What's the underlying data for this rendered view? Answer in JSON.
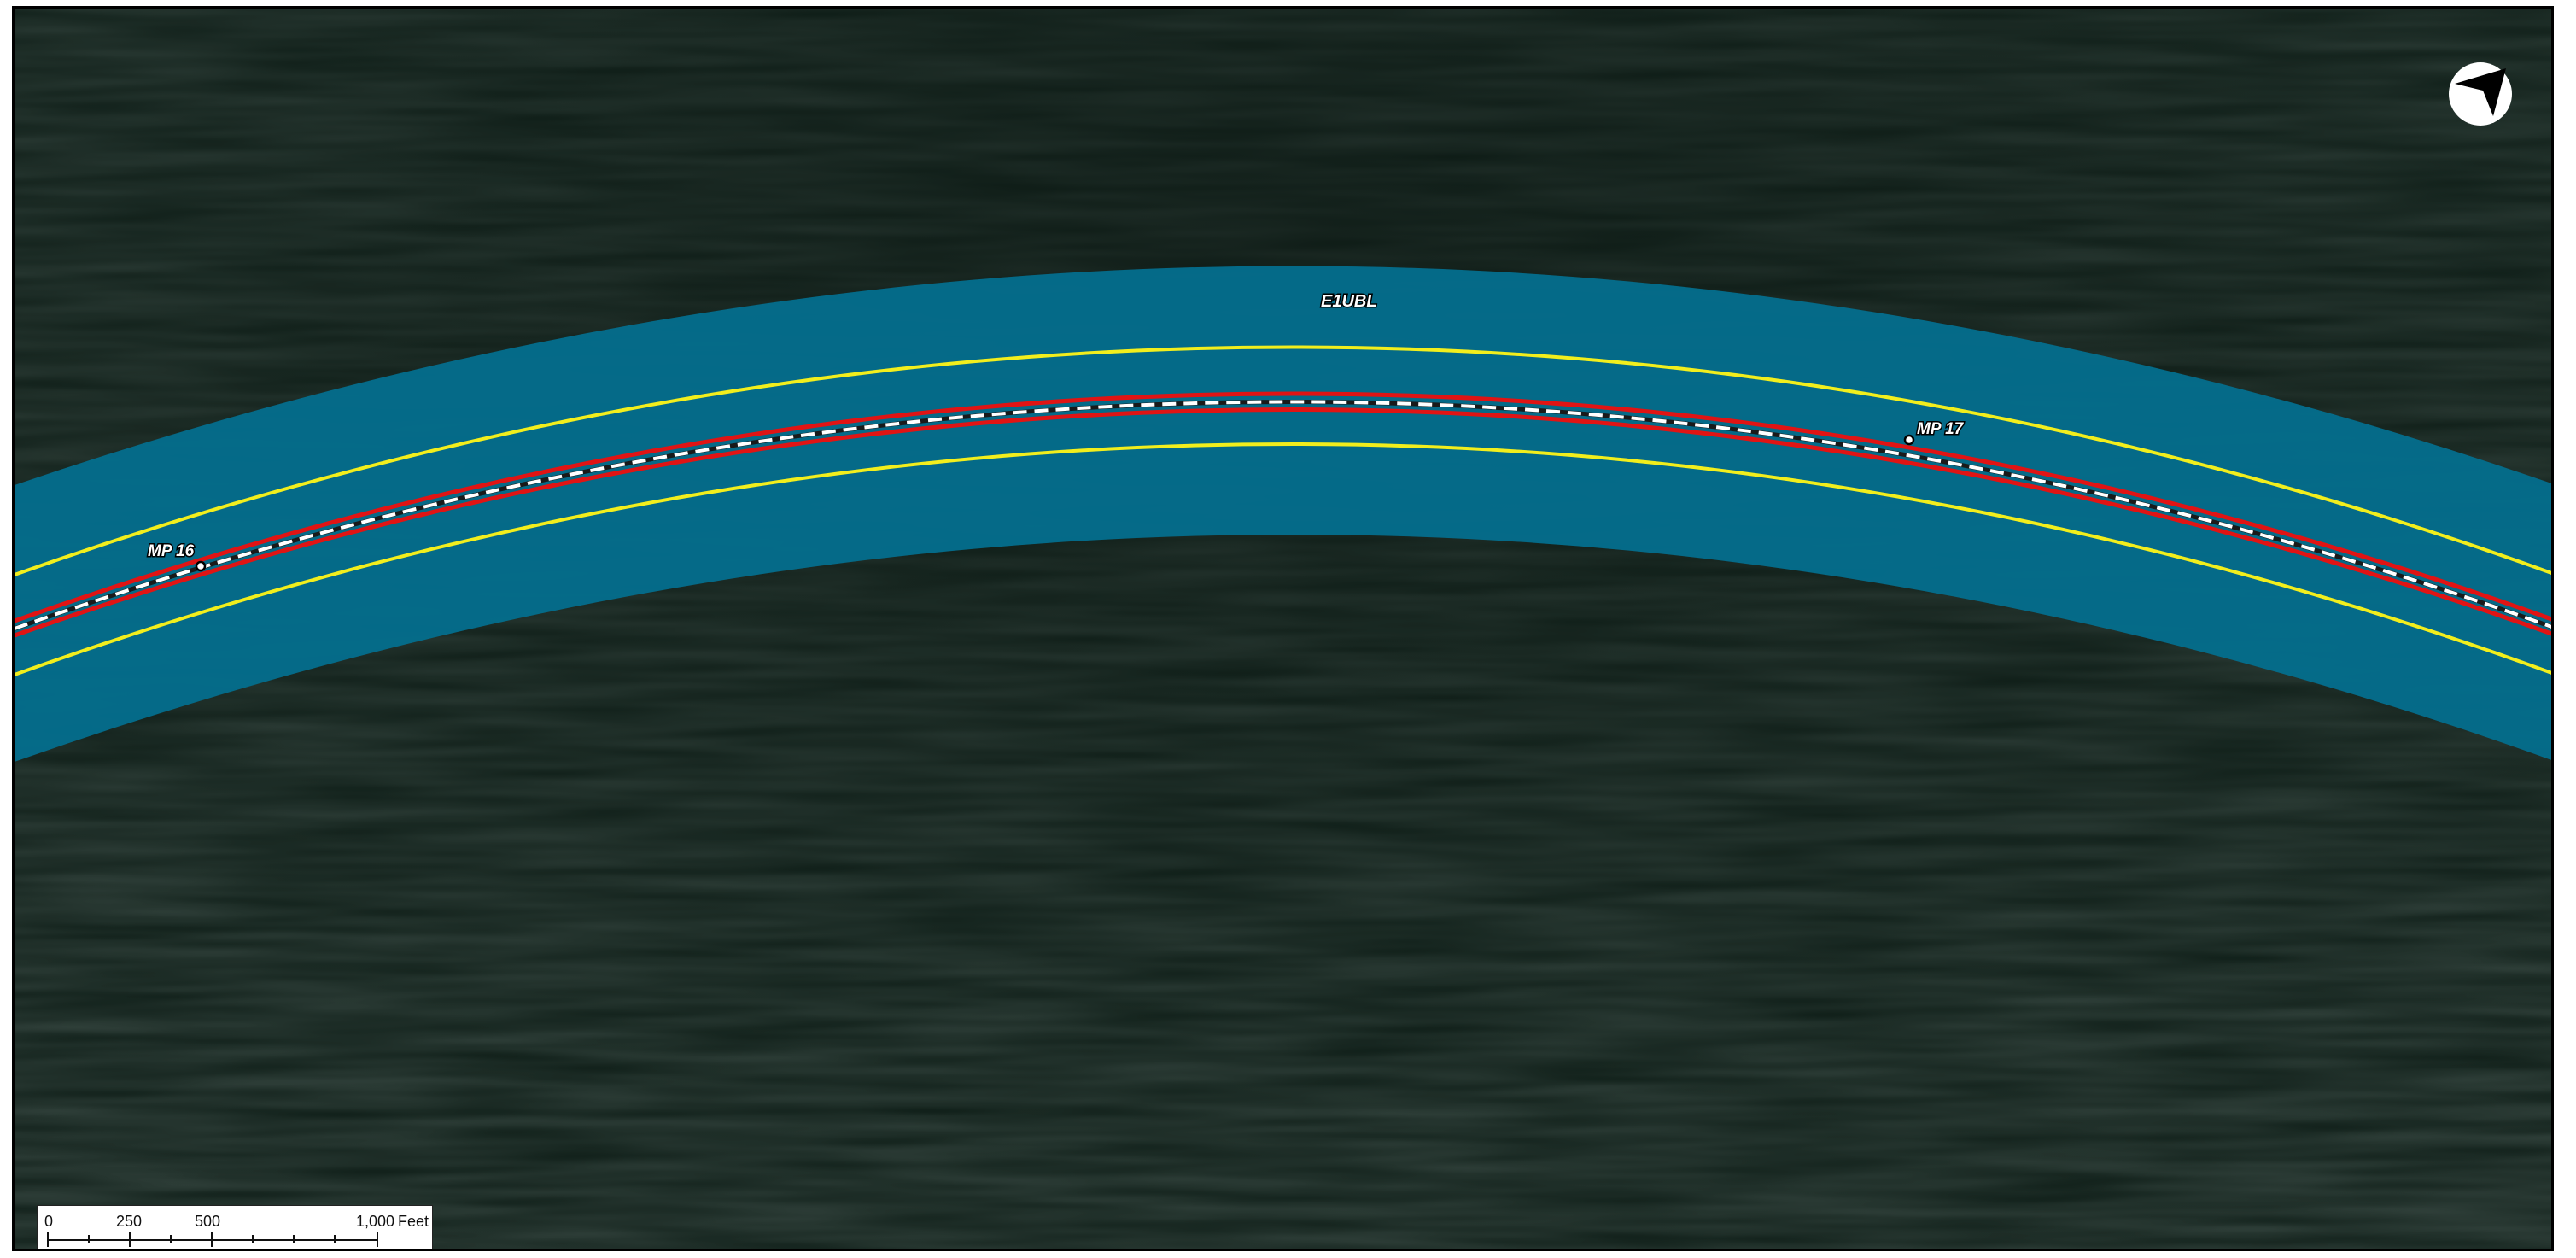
{
  "map": {
    "corridor_label": "E1UBL",
    "milepost_labels": [
      "MP 16",
      "MP 17"
    ]
  },
  "scale_bar": {
    "tick_labels": [
      "0",
      "250",
      "500",
      "1,000"
    ],
    "unit": "Feet"
  },
  "icons": {
    "north_arrow": "north-arrow-icon"
  },
  "colors": {
    "water": "#0d1c16",
    "corridor": "#046d8c",
    "buffer_lines": "#f2ee1d",
    "route_lines": "#e01414",
    "centerline": "#ffffff"
  }
}
